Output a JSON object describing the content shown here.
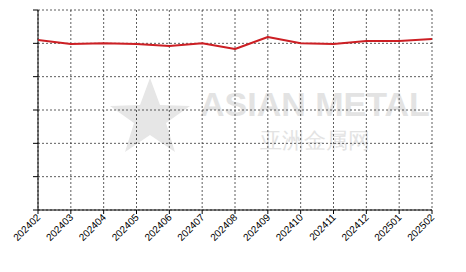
{
  "chart_data": {
    "type": "line",
    "categories": [
      "202402",
      "202403",
      "202404",
      "202405",
      "202406",
      "202407",
      "202408",
      "202409",
      "202410",
      "202411",
      "202412",
      "202501",
      "202502"
    ],
    "values": [
      5.1,
      4.98,
      5.0,
      4.98,
      4.92,
      5.0,
      4.83,
      5.19,
      5.0,
      4.98,
      5.07,
      5.07,
      5.13
    ],
    "color": "#cc1f24",
    "ylim": [
      0,
      6
    ],
    "yticks": [
      0,
      1,
      2,
      3,
      4,
      5,
      6
    ],
    "grid": true,
    "tick_labels": "x",
    "annotations": [
      "ASIAN METAL",
      "亚洲金属网"
    ]
  }
}
